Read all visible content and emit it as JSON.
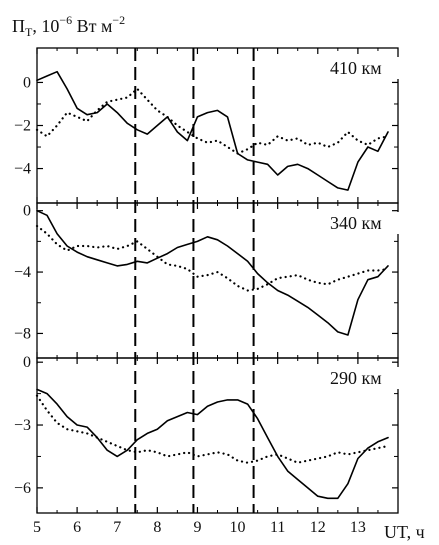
{
  "chart_data": {
    "type": "line",
    "ylabel_parts": {
      "base": "Π",
      "sub": "T",
      "rest": ", 10",
      "sup": "−6",
      "unit": " Вт м",
      "unit_sup": "−2"
    },
    "xlabel": "UT, ч",
    "xlim": [
      5,
      14
    ],
    "x_ticks": [
      5,
      6,
      7,
      8,
      9,
      10,
      11,
      12,
      13
    ],
    "vertical_lines_x": [
      7.45,
      8.9,
      10.4
    ],
    "grid": false,
    "panels": [
      {
        "label": "410 км",
        "ylim": [
          -5.6,
          1.6
        ],
        "y_ticks": [
          0,
          -2,
          -4
        ],
        "series": [
          {
            "style": "solid",
            "x": [
              5.0,
              5.25,
              5.5,
              5.75,
              6.0,
              6.25,
              6.5,
              6.75,
              7.0,
              7.25,
              7.5,
              7.75,
              8.0,
              8.25,
              8.5,
              8.75,
              9.0,
              9.25,
              9.5,
              9.75,
              10.0,
              10.25,
              10.5,
              10.75,
              11.0,
              11.25,
              11.5,
              11.75,
              12.0,
              12.25,
              12.5,
              12.75,
              13.0,
              13.25,
              13.5,
              13.75
            ],
            "y": [
              0.1,
              0.3,
              0.5,
              -0.3,
              -1.2,
              -1.5,
              -1.4,
              -1.0,
              -1.4,
              -1.9,
              -2.2,
              -2.4,
              -2.0,
              -1.6,
              -2.3,
              -2.7,
              -1.6,
              -1.4,
              -1.3,
              -1.6,
              -3.3,
              -3.6,
              -3.7,
              -3.8,
              -4.3,
              -3.9,
              -3.8,
              -4.0,
              -4.3,
              -4.6,
              -4.9,
              -5.0,
              -3.7,
              -3.0,
              -3.2,
              -2.3
            ]
          },
          {
            "style": "dotted",
            "x": [
              5.0,
              5.25,
              5.5,
              5.75,
              6.0,
              6.25,
              6.5,
              6.75,
              7.0,
              7.25,
              7.5,
              7.75,
              8.0,
              8.25,
              8.5,
              8.75,
              9.0,
              9.25,
              9.5,
              9.75,
              10.0,
              10.25,
              10.5,
              10.75,
              11.0,
              11.25,
              11.5,
              11.75,
              12.0,
              12.25,
              12.5,
              12.75,
              13.0,
              13.25,
              13.5,
              13.75
            ],
            "y": [
              -2.2,
              -2.5,
              -2.0,
              -1.4,
              -1.6,
              -1.8,
              -1.3,
              -0.9,
              -0.8,
              -0.7,
              -0.3,
              -0.8,
              -1.3,
              -1.6,
              -2.0,
              -2.3,
              -2.6,
              -2.8,
              -2.7,
              -3.0,
              -3.3,
              -3.1,
              -2.8,
              -2.9,
              -2.5,
              -2.7,
              -2.6,
              -2.9,
              -2.8,
              -3.0,
              -2.8,
              -2.3,
              -2.7,
              -2.9,
              -2.6,
              -2.5
            ]
          }
        ]
      },
      {
        "label": "340 км",
        "ylim": [
          -9.6,
          0.5
        ],
        "y_ticks": [
          0,
          -4,
          -8
        ],
        "series": [
          {
            "style": "solid",
            "x": [
              5.0,
              5.25,
              5.5,
              5.75,
              6.0,
              6.25,
              6.5,
              6.75,
              7.0,
              7.25,
              7.5,
              7.75,
              8.0,
              8.25,
              8.5,
              8.75,
              9.0,
              9.25,
              9.5,
              9.75,
              10.0,
              10.25,
              10.5,
              10.75,
              11.0,
              11.25,
              11.5,
              11.75,
              12.0,
              12.25,
              12.5,
              12.75,
              13.0,
              13.25,
              13.5,
              13.75
            ],
            "y": [
              0.0,
              -0.3,
              -1.5,
              -2.3,
              -2.7,
              -3.0,
              -3.2,
              -3.4,
              -3.6,
              -3.5,
              -3.3,
              -3.4,
              -3.1,
              -2.8,
              -2.4,
              -2.2,
              -2.0,
              -1.7,
              -1.9,
              -2.3,
              -2.8,
              -3.3,
              -4.1,
              -4.7,
              -5.2,
              -5.5,
              -5.9,
              -6.3,
              -6.8,
              -7.3,
              -7.9,
              -8.1,
              -5.8,
              -4.5,
              -4.3,
              -3.6
            ]
          },
          {
            "style": "dotted",
            "x": [
              5.0,
              5.25,
              5.5,
              5.75,
              6.0,
              6.25,
              6.5,
              6.75,
              7.0,
              7.25,
              7.5,
              7.75,
              8.0,
              8.25,
              8.5,
              8.75,
              9.0,
              9.25,
              9.5,
              9.75,
              10.0,
              10.25,
              10.5,
              10.75,
              11.0,
              11.25,
              11.5,
              11.75,
              12.0,
              12.25,
              12.5,
              12.75,
              13.0,
              13.25,
              13.5,
              13.75
            ],
            "y": [
              -1.0,
              -1.5,
              -2.2,
              -2.6,
              -2.3,
              -2.3,
              -2.4,
              -2.3,
              -2.5,
              -2.3,
              -2.0,
              -2.5,
              -3.0,
              -3.5,
              -3.6,
              -3.8,
              -4.3,
              -4.2,
              -4.0,
              -4.4,
              -4.9,
              -5.2,
              -5.1,
              -4.8,
              -4.4,
              -4.3,
              -4.2,
              -4.5,
              -4.7,
              -4.8,
              -4.5,
              -4.3,
              -4.1,
              -3.9,
              -3.9,
              -3.8
            ]
          }
        ]
      },
      {
        "label": "290 км",
        "ylim": [
          -7.2,
          0.2
        ],
        "y_ticks": [
          0,
          -3,
          -6
        ],
        "series": [
          {
            "style": "solid",
            "x": [
              5.0,
              5.25,
              5.5,
              5.75,
              6.0,
              6.25,
              6.5,
              6.75,
              7.0,
              7.25,
              7.5,
              7.75,
              8.0,
              8.25,
              8.5,
              8.75,
              9.0,
              9.25,
              9.5,
              9.75,
              10.0,
              10.25,
              10.5,
              10.75,
              11.0,
              11.25,
              11.5,
              11.75,
              12.0,
              12.25,
              12.5,
              12.75,
              13.0,
              13.25,
              13.5,
              13.75
            ],
            "y": [
              -1.3,
              -1.5,
              -2.0,
              -2.6,
              -3.0,
              -3.1,
              -3.6,
              -4.2,
              -4.5,
              -4.2,
              -3.7,
              -3.4,
              -3.2,
              -2.8,
              -2.6,
              -2.4,
              -2.5,
              -2.1,
              -1.9,
              -1.8,
              -1.8,
              -2.0,
              -2.7,
              -3.6,
              -4.5,
              -5.2,
              -5.6,
              -6.0,
              -6.4,
              -6.5,
              -6.5,
              -5.8,
              -4.6,
              -4.1,
              -3.8,
              -3.6
            ]
          },
          {
            "style": "dotted",
            "x": [
              5.0,
              5.25,
              5.5,
              5.75,
              6.0,
              6.25,
              6.5,
              6.75,
              7.0,
              7.25,
              7.5,
              7.75,
              8.0,
              8.25,
              8.5,
              8.75,
              9.0,
              9.25,
              9.5,
              9.75,
              10.0,
              10.25,
              10.5,
              10.75,
              11.0,
              11.25,
              11.5,
              11.75,
              12.0,
              12.25,
              12.5,
              12.75,
              13.0,
              13.25,
              13.5,
              13.75
            ],
            "y": [
              -1.6,
              -2.3,
              -2.9,
              -3.2,
              -3.3,
              -3.4,
              -3.6,
              -3.8,
              -4.0,
              -4.2,
              -4.3,
              -4.2,
              -4.3,
              -4.5,
              -4.4,
              -4.3,
              -4.5,
              -4.4,
              -4.3,
              -4.4,
              -4.7,
              -4.8,
              -4.7,
              -4.5,
              -4.4,
              -4.6,
              -4.8,
              -4.7,
              -4.6,
              -4.5,
              -4.3,
              -4.4,
              -4.3,
              -4.2,
              -4.1,
              -4.0
            ]
          }
        ]
      }
    ]
  }
}
